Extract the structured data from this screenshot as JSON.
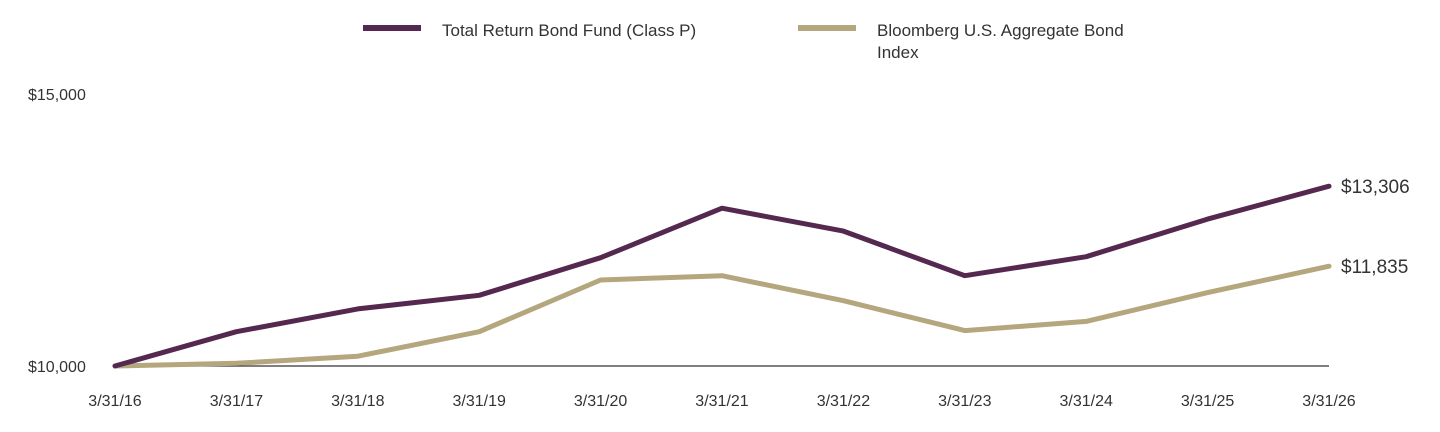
{
  "chart_data": {
    "type": "line",
    "x": [
      "3/31/16",
      "3/31/17",
      "3/31/18",
      "3/31/19",
      "3/31/20",
      "3/31/21",
      "3/31/22",
      "3/31/23",
      "3/31/24",
      "3/31/25",
      "3/31/26"
    ],
    "series": [
      {
        "name": "Total Return Bond Fund (Class P)",
        "color": "#55284f",
        "values": [
          10000,
          10630,
          11050,
          11300,
          11990,
          12900,
          12480,
          11660,
          12010,
          12700,
          13306
        ],
        "end_label": "$13,306"
      },
      {
        "name_lines": [
          "Bloomberg U.S. Aggregate Bond",
          "Index"
        ],
        "color": "#b5a77d",
        "values": [
          10000,
          10050,
          10180,
          10630,
          11580,
          11660,
          11200,
          10650,
          10820,
          11350,
          11835
        ],
        "end_label": "$11,835"
      }
    ],
    "y_tick_values": [
      10000,
      15000
    ],
    "y_tick_labels": [
      "$10,000",
      "$15,000"
    ],
    "ylim": [
      10000,
      15000
    ],
    "legend_position": "top",
    "grid": false
  }
}
